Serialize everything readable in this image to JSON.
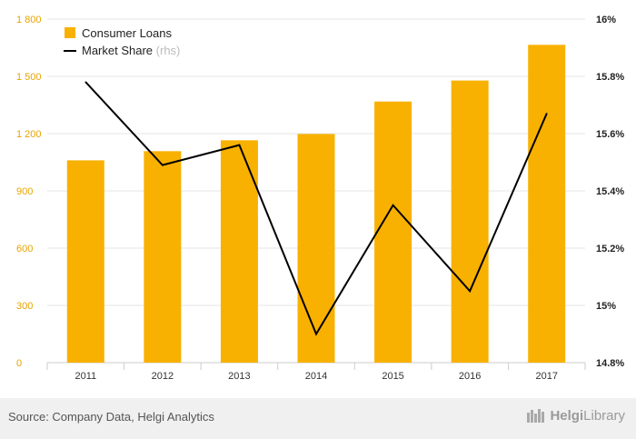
{
  "chart_data": {
    "type": "bar",
    "categories": [
      "2011",
      "2012",
      "2013",
      "2014",
      "2015",
      "2016",
      "2017"
    ],
    "series": [
      {
        "name": "Consumer Loans",
        "type": "bar",
        "axis": "left",
        "color": "#F8B100",
        "values": [
          1060,
          1108,
          1165,
          1198,
          1368,
          1478,
          1665
        ]
      },
      {
        "name": "Market Share",
        "legend_suffix": "(rhs)",
        "type": "line",
        "axis": "right",
        "color": "#000000",
        "values": [
          15.78,
          15.49,
          15.56,
          14.9,
          15.35,
          15.05,
          15.67
        ]
      }
    ],
    "y_left": {
      "ylim": [
        0,
        1800
      ],
      "ticks": [
        0,
        300,
        600,
        900,
        1200,
        1500,
        1800
      ],
      "tick_labels": [
        "0",
        "300",
        "600",
        "900",
        "1 200",
        "1 500",
        "1 800"
      ]
    },
    "y_right": {
      "ylim": [
        14.8,
        16.0
      ],
      "ticks": [
        14.8,
        15.0,
        15.2,
        15.4,
        15.6,
        15.8,
        16.0
      ],
      "tick_labels": [
        "14.8%",
        "15%",
        "15.2%",
        "15.4%",
        "15.6%",
        "15.8%",
        "16%"
      ]
    },
    "grid": true,
    "legend_position": "top-left"
  },
  "footer": {
    "source": "Source: Company Data, Helgi Analytics",
    "logo_prefix": "Helgi",
    "logo_suffix": "Library"
  }
}
